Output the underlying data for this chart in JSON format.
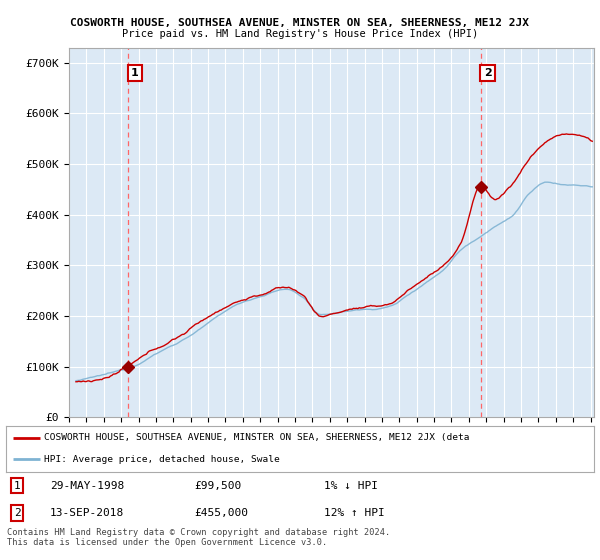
{
  "title1": "COSWORTH HOUSE, SOUTHSEA AVENUE, MINSTER ON SEA, SHEERNESS, ME12 2JX",
  "title2": "Price paid vs. HM Land Registry's House Price Index (HPI)",
  "ylabel_ticks": [
    "£0",
    "£100K",
    "£200K",
    "£300K",
    "£400K",
    "£500K",
    "£600K",
    "£700K"
  ],
  "ytick_values": [
    0,
    100000,
    200000,
    300000,
    400000,
    500000,
    600000,
    700000
  ],
  "ylim": [
    0,
    730000
  ],
  "xlim_start": 1995.3,
  "xlim_end": 2025.2,
  "sale1_date": 1998.41,
  "sale1_price": 99500,
  "sale1_label": "1",
  "sale2_date": 2018.71,
  "sale2_price": 455000,
  "sale2_label": "2",
  "legend_line1": "COSWORTH HOUSE, SOUTHSEA AVENUE, MINSTER ON SEA, SHEERNESS, ME12 2JX (deta",
  "legend_line2": "HPI: Average price, detached house, Swale",
  "table_row1": [
    "1",
    "29-MAY-1998",
    "£99,500",
    "1% ↓ HPI"
  ],
  "table_row2": [
    "2",
    "13-SEP-2018",
    "£455,000",
    "12% ↑ HPI"
  ],
  "footnote": "Contains HM Land Registry data © Crown copyright and database right 2024.\nThis data is licensed under the Open Government Licence v3.0.",
  "line_color_red": "#cc0000",
  "line_color_blue": "#7fb3d3",
  "sale_marker_color": "#990000",
  "vline_color": "#ff6666",
  "background_color": "#ffffff",
  "plot_bg_color": "#dce9f5"
}
